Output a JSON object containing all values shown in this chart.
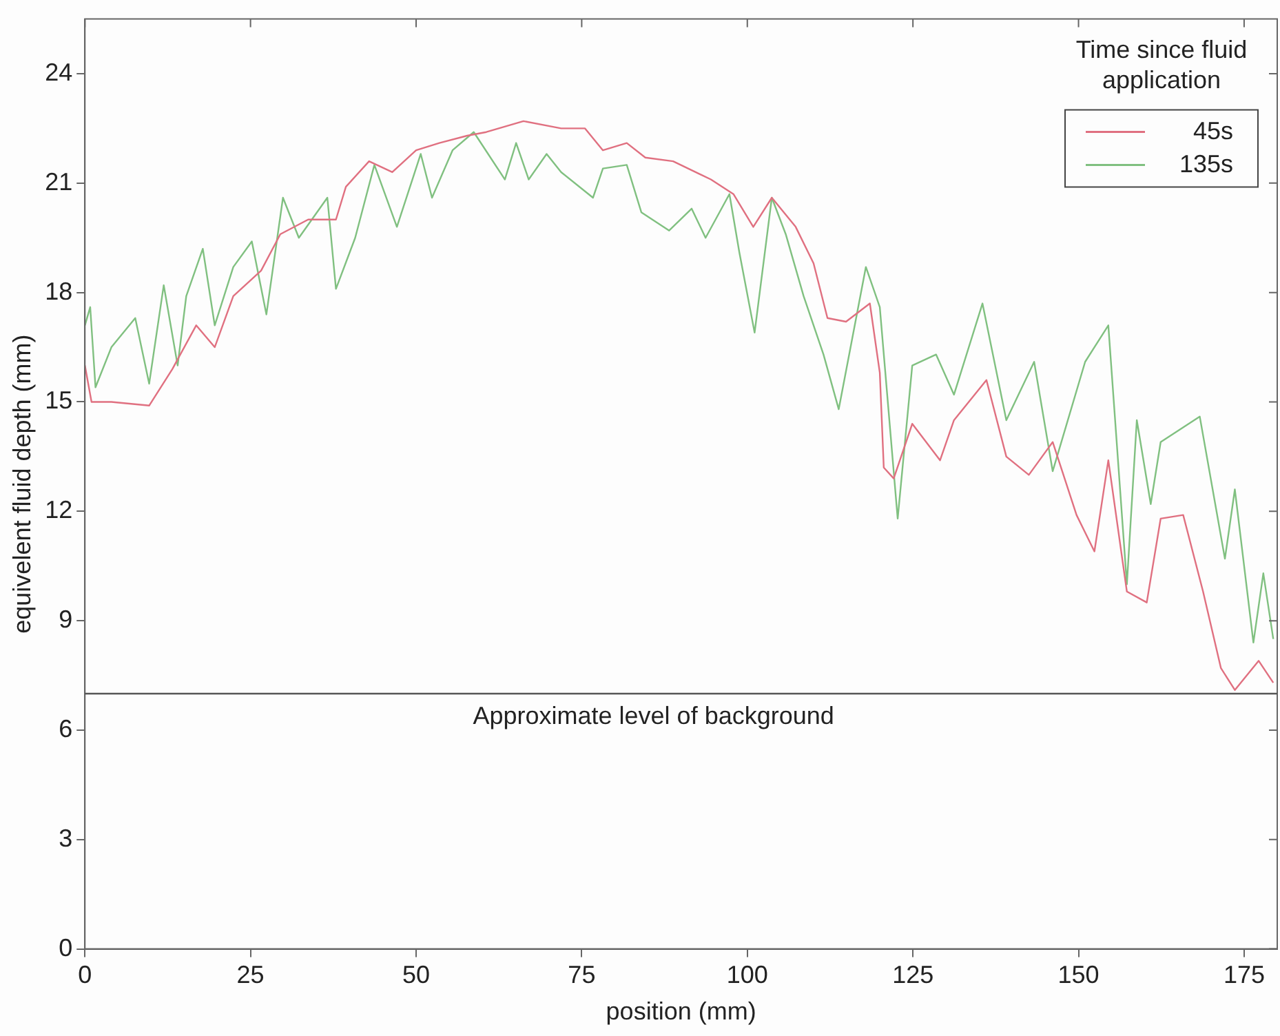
{
  "chart_data": {
    "type": "line",
    "xlabel": "position (mm)",
    "ylabel": "equivelent fluid depth (mm)",
    "legend_title": "Time since fluid application",
    "legend": "top right",
    "grid": false,
    "marker": "none",
    "line_style": "solid",
    "xlim": [
      0,
      180
    ],
    "ylim": [
      0,
      25.5
    ],
    "xticks": [
      0,
      25,
      50,
      75,
      100,
      125,
      150,
      175
    ],
    "yticks": [
      0,
      3,
      6,
      9,
      12,
      15,
      18,
      21,
      24
    ],
    "ref_lines": [
      {
        "axis": "y",
        "value": 7,
        "label": "Approximate level of background",
        "color": "#555555"
      }
    ],
    "series": [
      {
        "name": "45s",
        "color": "#e07080",
        "x": [
          0,
          1,
          4,
          9.7,
          13.2,
          16.8,
          19.6,
          22.4,
          26.6,
          29.5,
          33.7,
          37.9,
          39.4,
          42.9,
          46.4,
          50,
          53.5,
          57.7,
          60.6,
          66.2,
          71.9,
          75.5,
          78.2,
          81.8,
          84.6,
          88.8,
          94.5,
          97.9,
          100.9,
          103.7,
          107.3,
          110,
          112.1,
          114.9,
          118.5,
          120,
          120.6,
          122.1,
          124.9,
          129.1,
          131.2,
          136.1,
          139.1,
          142.5,
          146.1,
          149.7,
          152.4,
          154.5,
          157.3,
          160.3,
          162.4,
          165.8,
          168.8,
          171.5,
          173.6,
          177.2,
          179.4
        ],
        "values": [
          16.0,
          15.0,
          15.0,
          14.9,
          15.9,
          17.1,
          16.5,
          17.9,
          18.6,
          19.6,
          20.0,
          20.0,
          20.9,
          21.6,
          21.3,
          21.9,
          22.1,
          22.3,
          22.4,
          22.7,
          22.5,
          22.5,
          21.9,
          22.1,
          21.7,
          21.6,
          21.1,
          20.7,
          19.8,
          20.6,
          19.8,
          18.8,
          17.3,
          17.2,
          17.7,
          15.8,
          13.2,
          12.9,
          14.4,
          13.4,
          14.5,
          15.6,
          13.5,
          13.0,
          13.9,
          11.9,
          10.9,
          13.4,
          9.8,
          9.5,
          11.8,
          11.9,
          9.8,
          7.7,
          7.1,
          7.9,
          7.3
        ]
      },
      {
        "name": "135s",
        "color": "#80c080",
        "x": [
          0,
          0.8,
          1.6,
          4,
          7.6,
          9.7,
          11.9,
          14,
          15.3,
          17.8,
          19.6,
          22.4,
          25.2,
          27.4,
          29.9,
          32.3,
          36.6,
          37.9,
          40.8,
          43.7,
          47.1,
          50.7,
          52.4,
          55.5,
          58.7,
          63.4,
          65.1,
          67,
          69.7,
          71.9,
          76.7,
          78.2,
          81.8,
          84,
          88.2,
          91.6,
          93.7,
          97.3,
          98.8,
          101.1,
          103.7,
          105.8,
          108.5,
          111.5,
          113.8,
          117.9,
          120,
          122.7,
          124.9,
          128.5,
          131.2,
          135.5,
          139.1,
          143.3,
          146.1,
          151,
          154.5,
          157.3,
          158.8,
          160.9,
          162.4,
          168.3,
          172.1,
          173.6,
          176.4,
          177.9,
          179.4
        ],
        "values": [
          17.1,
          17.6,
          15.4,
          16.5,
          17.3,
          15.5,
          18.2,
          16.0,
          17.9,
          19.2,
          17.1,
          18.7,
          19.4,
          17.4,
          20.6,
          19.5,
          20.6,
          18.1,
          19.5,
          21.5,
          19.8,
          21.8,
          20.6,
          21.9,
          22.4,
          21.1,
          22.1,
          21.1,
          21.8,
          21.3,
          20.6,
          21.4,
          21.5,
          20.2,
          19.7,
          20.3,
          19.5,
          20.7,
          19.1,
          16.9,
          20.6,
          19.6,
          17.9,
          16.3,
          14.8,
          18.7,
          17.6,
          11.8,
          16.0,
          16.3,
          15.2,
          17.7,
          14.5,
          16.1,
          13.1,
          16.1,
          17.1,
          10.0,
          14.5,
          12.2,
          13.9,
          14.6,
          10.7,
          12.6,
          8.4,
          10.3,
          8.5
        ]
      }
    ]
  }
}
